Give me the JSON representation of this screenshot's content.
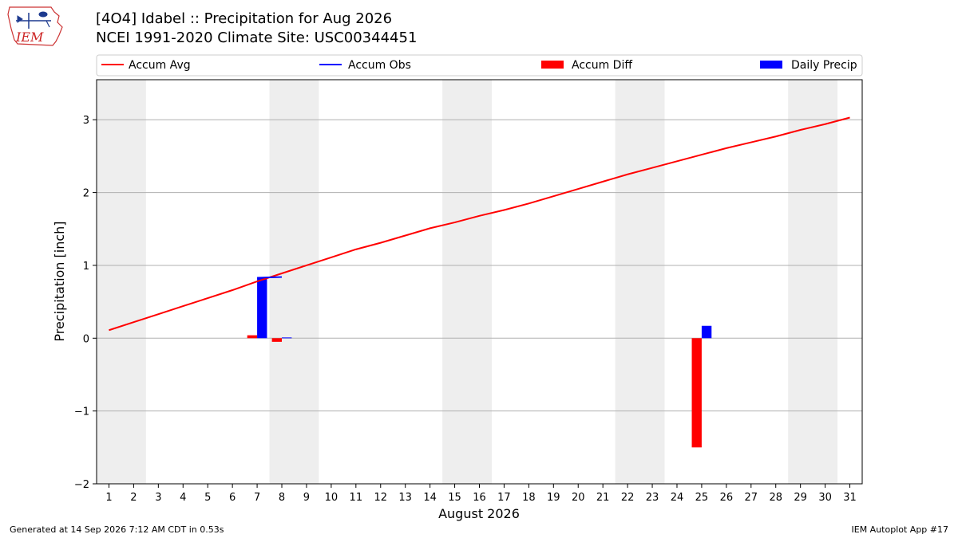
{
  "header": {
    "title_line1": "[4O4] Idabel :: Precipitation for Aug 2026",
    "title_line2": "NCEI 1991-2020 Climate Site: USC00344451",
    "logo_text": "IEM"
  },
  "footer": {
    "left": "Generated at 14 Sep 2026 7:12 AM CDT in 0.53s",
    "right": "IEM Autoplot App #17"
  },
  "colors": {
    "accum_avg": "#ff0000",
    "accum_obs": "#0000ff",
    "accum_diff": "#ff0000",
    "daily_precip": "#0000ff",
    "weekend_shade": "#eeeeee",
    "grid": "#b0b0b0"
  },
  "chart_data": {
    "type": "bar",
    "xlabel": "August 2026",
    "ylabel": "Precipitation [inch]",
    "xlim": [
      0.5,
      31.5
    ],
    "ylim": [
      -2,
      3.55
    ],
    "yticks": [
      -2,
      -1,
      0,
      1,
      2,
      3
    ],
    "ytick_labels": [
      "−2",
      "−1",
      "0",
      "1",
      "2",
      "3"
    ],
    "x": [
      1,
      2,
      3,
      4,
      5,
      6,
      7,
      8,
      9,
      10,
      11,
      12,
      13,
      14,
      15,
      16,
      17,
      18,
      19,
      20,
      21,
      22,
      23,
      24,
      25,
      26,
      27,
      28,
      29,
      30,
      31
    ],
    "weekend_spans": [
      [
        0.5,
        2.5
      ],
      [
        7.5,
        9.5
      ],
      [
        14.5,
        16.5
      ],
      [
        21.5,
        23.5
      ],
      [
        28.5,
        30.5
      ]
    ],
    "grid": "y",
    "legend_position": "top",
    "legend": [
      {
        "label": "Accum Avg",
        "kind": "line",
        "color": "#ff0000"
      },
      {
        "label": "Accum Obs",
        "kind": "line",
        "color": "#0000ff"
      },
      {
        "label": "Accum Diff",
        "kind": "bar",
        "color": "#ff0000"
      },
      {
        "label": "Daily Precip",
        "kind": "bar",
        "color": "#0000ff"
      }
    ],
    "series": [
      {
        "name": "Accum Avg",
        "kind": "line",
        "x": [
          1,
          2,
          3,
          4,
          5,
          6,
          7,
          8,
          9,
          10,
          11,
          12,
          13,
          14,
          15,
          16,
          17,
          18,
          19,
          20,
          21,
          22,
          23,
          24,
          25,
          26,
          27,
          28,
          29,
          30,
          31
        ],
        "values": [
          0.11,
          0.22,
          0.33,
          0.44,
          0.55,
          0.66,
          0.78,
          0.89,
          1.0,
          1.11,
          1.22,
          1.31,
          1.41,
          1.51,
          1.59,
          1.68,
          1.76,
          1.85,
          1.95,
          2.05,
          2.15,
          2.25,
          2.34,
          2.43,
          2.52,
          2.61,
          2.69,
          2.77,
          2.86,
          2.94,
          3.03
        ]
      },
      {
        "name": "Accum Obs",
        "kind": "line",
        "x": [
          7,
          8
        ],
        "values": [
          0.83,
          0.84
        ]
      },
      {
        "name": "Accum Diff",
        "kind": "bar",
        "x": [
          7,
          8,
          25
        ],
        "values": [
          0.04,
          -0.05,
          -1.5
        ]
      },
      {
        "name": "Daily Precip",
        "kind": "bar",
        "x": [
          7,
          8,
          25
        ],
        "values": [
          0.83,
          0.01,
          0.17
        ]
      }
    ]
  }
}
